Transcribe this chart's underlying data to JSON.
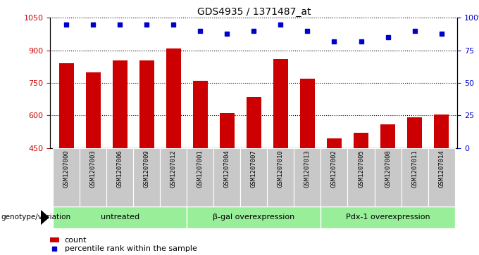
{
  "title": "GDS4935 / 1371487_at",
  "samples": [
    "GSM1207000",
    "GSM1207003",
    "GSM1207006",
    "GSM1207009",
    "GSM1207012",
    "GSM1207001",
    "GSM1207004",
    "GSM1207007",
    "GSM1207010",
    "GSM1207013",
    "GSM1207002",
    "GSM1207005",
    "GSM1207008",
    "GSM1207011",
    "GSM1207014"
  ],
  "counts": [
    840,
    800,
    855,
    855,
    910,
    760,
    610,
    685,
    860,
    770,
    495,
    520,
    560,
    590,
    605
  ],
  "percentiles": [
    95,
    95,
    95,
    95,
    95,
    90,
    88,
    90,
    95,
    90,
    82,
    82,
    85,
    90,
    88
  ],
  "groups": [
    {
      "label": "untreated",
      "start": 0,
      "end": 5
    },
    {
      "label": "β-gal overexpression",
      "start": 5,
      "end": 10
    },
    {
      "label": "Pdx-1 overexpression",
      "start": 10,
      "end": 15
    }
  ],
  "ylim_left": [
    450,
    1050
  ],
  "ylim_right": [
    0,
    100
  ],
  "yticks_left": [
    450,
    600,
    750,
    900,
    1050
  ],
  "yticks_right": [
    0,
    25,
    50,
    75,
    100
  ],
  "bar_color": "#cc0000",
  "dot_color": "#0000cc",
  "group_bg_color": "#99ee99",
  "sample_bg_color": "#c8c8c8",
  "bar_width": 0.55,
  "legend_count_label": "count",
  "legend_percentile_label": "percentile rank within the sample",
  "genotype_label": "genotype/variation"
}
